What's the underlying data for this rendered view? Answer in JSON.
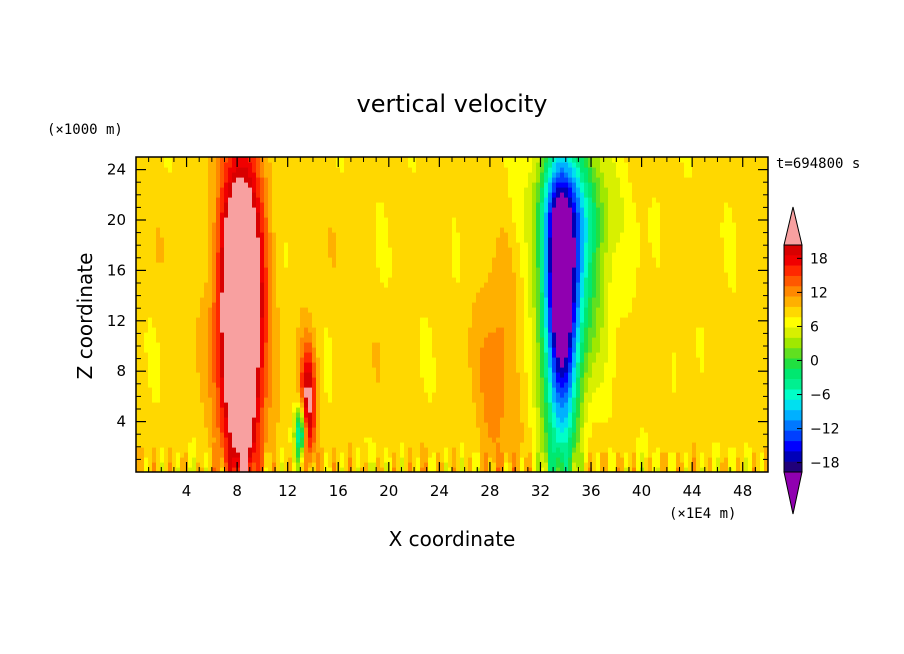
{
  "chart_data": {
    "type": "heatmap",
    "title": "vertical velocity",
    "xlabel": "X coordinate",
    "ylabel": "Z coordinate",
    "x_unit": "(×1E4 m)",
    "y_unit": "(×1000 m)",
    "time_label": "t=694800 s",
    "xlim": [
      0,
      50
    ],
    "ylim": [
      0,
      25
    ],
    "x_ticks": [
      4,
      8,
      12,
      16,
      20,
      24,
      28,
      32,
      36,
      40,
      44,
      48
    ],
    "y_ticks": [
      4,
      8,
      12,
      16,
      20,
      24
    ],
    "colorbar": {
      "levels": [
        -21,
        -19.5,
        -18,
        -16.5,
        -15,
        -13.5,
        -12,
        -10.5,
        -9,
        -7.5,
        -6,
        -4.5,
        -3,
        -1.5,
        0,
        1.5,
        3,
        4.5,
        6,
        7.5,
        9,
        10.5,
        12,
        13.5,
        15,
        16.5,
        18,
        19.5,
        21
      ],
      "tick_labels": [
        "18",
        "12",
        "6",
        "0",
        "−6",
        "−12",
        "−18"
      ],
      "tick_values": [
        18,
        12,
        6,
        0,
        -6,
        -12,
        -18
      ],
      "colors": [
        "#7a00a8",
        "#20007a",
        "#0000b8",
        "#0000ff",
        "#0040ff",
        "#0078ff",
        "#00b0ff",
        "#00e0f0",
        "#00ffc8",
        "#00f090",
        "#00e870",
        "#20e040",
        "#60e020",
        "#a0e800",
        "#d8f000",
        "#ffff00",
        "#ffd800",
        "#ffb000",
        "#ff8800",
        "#ff5800",
        "#ff2800",
        "#f00000",
        "#d80000",
        "#f8a0a0"
      ],
      "over_color": "#f8a0a0",
      "under_color": "#9000b0"
    },
    "features": [
      {
        "name": "strong updraft",
        "x_center": 8.3,
        "z_range": [
          0,
          24
        ],
        "peak_w": 20
      },
      {
        "name": "weak updraft",
        "x_center": 13.5,
        "z_range": [
          0,
          11
        ],
        "peak_w": 10
      },
      {
        "name": "weak downdraft",
        "x_center": 13.0,
        "z_range": [
          1,
          6
        ],
        "peak_w": -12
      },
      {
        "name": "weak updraft",
        "x_center": 28.5,
        "z_range": [
          2,
          14
        ],
        "peak_w": 4
      },
      {
        "name": "strong downdraft",
        "x_center": 33.5,
        "z_range": [
          0,
          24
        ],
        "peak_w": -18
      }
    ]
  }
}
